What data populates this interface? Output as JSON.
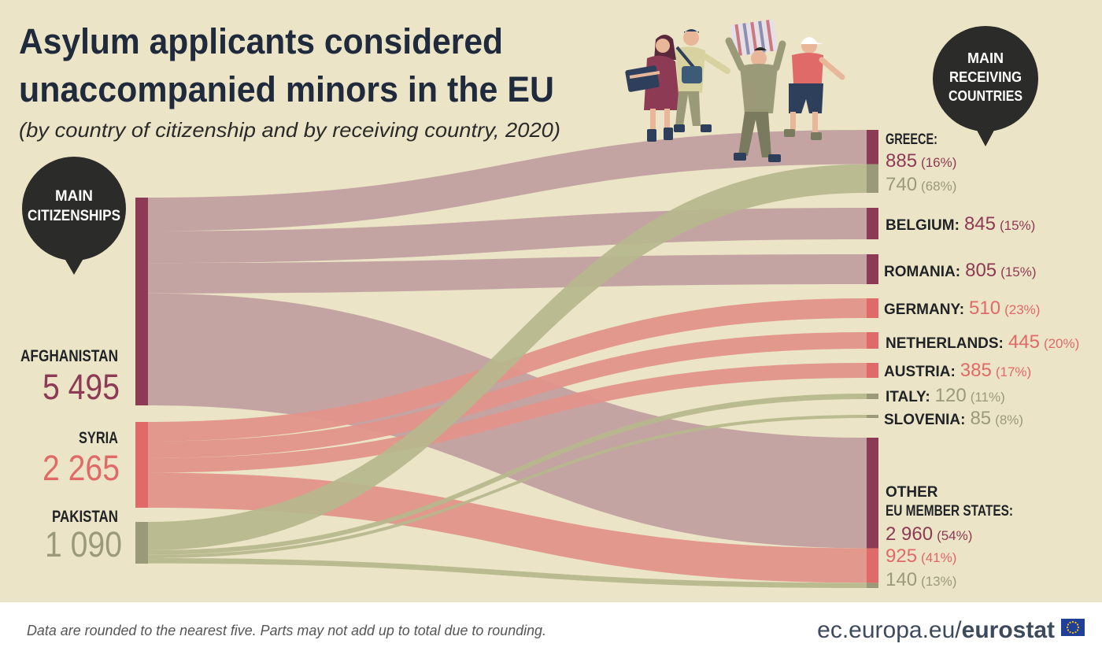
{
  "title_line1": "Asylum applicants considered",
  "title_line2": "unaccompanied minors in the EU",
  "subtitle": "(by country of citizenship and by receiving country, 2020)",
  "bubble_left": [
    "MAIN",
    "CITIZENSHIPS"
  ],
  "bubble_right": [
    "MAIN",
    "RECEIVING",
    "COUNTRIES"
  ],
  "colors": {
    "background": "#ece4c6",
    "afghanistan": "#8d3a55",
    "afghanistan_flow": "#c2a0a0",
    "syria": "#e06a68",
    "syria_flow": "#e2948a",
    "pakistan": "#9a9a78",
    "pakistan_flow": "#b6b78c",
    "text_dark": "#1f2326",
    "bubble": "#2b2b29"
  },
  "sources": [
    {
      "key": "afghanistan",
      "label": "AFGHANISTAN",
      "value_text": "5 495",
      "value": 5495
    },
    {
      "key": "syria",
      "label": "SYRIA",
      "value_text": "2 265",
      "value": 2265
    },
    {
      "key": "pakistan",
      "label": "PAKISTAN",
      "value_text": "1 090",
      "value": 1090
    }
  ],
  "targets": [
    {
      "key": "greece",
      "label": "GREECE:",
      "entries": [
        {
          "source": "afghanistan",
          "value_text": "885",
          "share_text": "(16%)",
          "value": 885
        },
        {
          "source": "pakistan",
          "value_text": "740",
          "share_text": "(68%)",
          "value": 740
        }
      ]
    },
    {
      "key": "belgium",
      "label": "BELGIUM:",
      "entries": [
        {
          "source": "afghanistan",
          "value_text": "845",
          "share_text": "(15%)",
          "value": 845
        }
      ]
    },
    {
      "key": "romania",
      "label": "ROMANIA:",
      "entries": [
        {
          "source": "afghanistan",
          "value_text": "805",
          "share_text": "(15%)",
          "value": 805
        }
      ]
    },
    {
      "key": "germany",
      "label": "GERMANY:",
      "entries": [
        {
          "source": "syria",
          "value_text": "510",
          "share_text": "(23%)",
          "value": 510
        }
      ]
    },
    {
      "key": "netherlands",
      "label": "NETHERLANDS:",
      "entries": [
        {
          "source": "syria",
          "value_text": "445",
          "share_text": "(20%)",
          "value": 445
        }
      ]
    },
    {
      "key": "austria",
      "label": "AUSTRIA:",
      "entries": [
        {
          "source": "syria",
          "value_text": "385",
          "share_text": "(17%)",
          "value": 385
        }
      ]
    },
    {
      "key": "italy",
      "label": "ITALY:",
      "entries": [
        {
          "source": "pakistan",
          "value_text": "120",
          "share_text": "(11%)",
          "value": 120
        }
      ]
    },
    {
      "key": "slovenia",
      "label": "SLOVENIA:",
      "entries": [
        {
          "source": "pakistan",
          "value_text": "85",
          "share_text": "(8%)",
          "value": 85
        }
      ]
    },
    {
      "key": "other",
      "label": "OTHER",
      "label2": "EU MEMBER STATES:",
      "entries": [
        {
          "source": "afghanistan",
          "value_text": "2 960",
          "share_text": "(54%)",
          "value": 2960
        },
        {
          "source": "syria",
          "value_text": "925",
          "share_text": "(41%)",
          "value": 925
        },
        {
          "source": "pakistan",
          "value_text": "140",
          "share_text": "(13%)",
          "value": 140
        }
      ]
    }
  ],
  "footnote": "Data are rounded to the nearest five. Parts may not add up to total due to rounding.",
  "brand": {
    "url": "ec.europa.eu/",
    "name": "eurostat"
  }
}
